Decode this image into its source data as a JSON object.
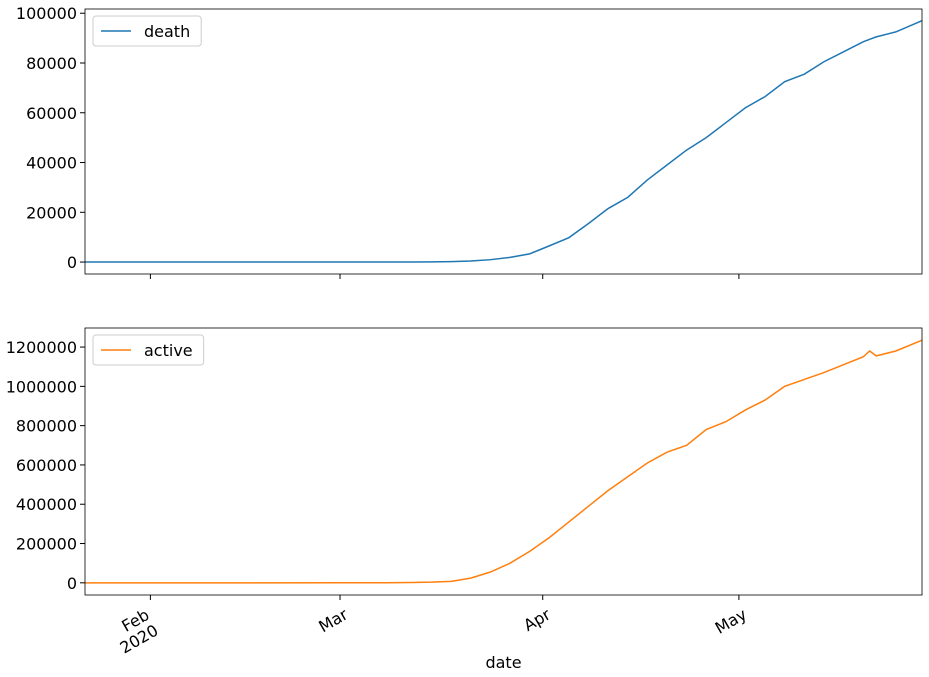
{
  "chart_data": [
    {
      "type": "line",
      "x": [
        "2020-01-22",
        "2020-02-01",
        "2020-02-15",
        "2020-03-01",
        "2020-03-08",
        "2020-03-12",
        "2020-03-15",
        "2020-03-18",
        "2020-03-21",
        "2020-03-24",
        "2020-03-27",
        "2020-03-30",
        "2020-04-02",
        "2020-04-05",
        "2020-04-08",
        "2020-04-11",
        "2020-04-14",
        "2020-04-17",
        "2020-04-20",
        "2020-04-23",
        "2020-04-26",
        "2020-04-29",
        "2020-05-02",
        "2020-05-05",
        "2020-05-08",
        "2020-05-11",
        "2020-05-14",
        "2020-05-17",
        "2020-05-20",
        "2020-05-21",
        "2020-05-22",
        "2020-05-25",
        "2020-05-29"
      ],
      "series": [
        {
          "name": "death",
          "color": "#1f77b4",
          "values": [
            0,
            0,
            0,
            1,
            21,
            40,
            60,
            150,
            400,
            950,
            1900,
            3300,
            6500,
            9800,
            15500,
            21500,
            26000,
            33000,
            39000,
            45000,
            50000,
            56000,
            62000,
            66500,
            72500,
            75500,
            80500,
            84500,
            88500,
            89500,
            90500,
            92500,
            97000
          ]
        }
      ],
      "xlim": [
        "2020-01-22",
        "2020-05-29"
      ],
      "ylim": [
        -4800,
        101700
      ],
      "yticks": [
        0,
        20000,
        40000,
        60000,
        80000,
        100000
      ],
      "legend": "upper left"
    },
    {
      "type": "line",
      "x": [
        "2020-01-22",
        "2020-02-01",
        "2020-02-15",
        "2020-03-01",
        "2020-03-08",
        "2020-03-12",
        "2020-03-15",
        "2020-03-18",
        "2020-03-21",
        "2020-03-24",
        "2020-03-27",
        "2020-03-30",
        "2020-04-02",
        "2020-04-05",
        "2020-04-08",
        "2020-04-11",
        "2020-04-14",
        "2020-04-17",
        "2020-04-20",
        "2020-04-23",
        "2020-04-26",
        "2020-04-29",
        "2020-05-02",
        "2020-05-05",
        "2020-05-08",
        "2020-05-11",
        "2020-05-14",
        "2020-05-17",
        "2020-05-20",
        "2020-05-21",
        "2020-05-22",
        "2020-05-25",
        "2020-05-29"
      ],
      "series": [
        {
          "name": "active",
          "color": "#ff7f0e",
          "values": [
            1,
            8,
            15,
            70,
            500,
            1600,
            3400,
            7500,
            24000,
            55000,
            100000,
            160000,
            230000,
            310000,
            390000,
            470000,
            540000,
            610000,
            665000,
            700000,
            780000,
            820000,
            880000,
            930000,
            1000000,
            1035000,
            1070000,
            1110000,
            1150000,
            1180000,
            1155000,
            1180000,
            1235000
          ]
        }
      ],
      "xlim": [
        "2020-01-22",
        "2020-05-29"
      ],
      "xticks": [
        {
          "value": "2020-02-01",
          "label": "Feb\n2020"
        },
        {
          "value": "2020-03-01",
          "label": "Mar"
        },
        {
          "value": "2020-04-01",
          "label": "Apr"
        },
        {
          "value": "2020-05-01",
          "label": "May"
        }
      ],
      "xlabel": "date",
      "ylim": [
        -62000,
        1297000
      ],
      "yticks": [
        0,
        200000,
        400000,
        600000,
        800000,
        1000000,
        1200000
      ],
      "legend": "upper left"
    }
  ]
}
